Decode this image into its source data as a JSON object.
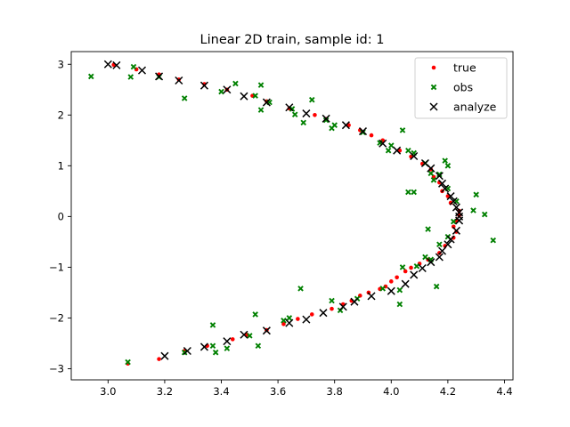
{
  "chart_data": {
    "type": "scatter",
    "title": "Linear 2D train, sample id: 1",
    "xlabel": "",
    "ylabel": "",
    "xlim": [
      2.87,
      4.43
    ],
    "ylim": [
      -3.22,
      3.25
    ],
    "xticks": [
      3.0,
      3.2,
      3.4,
      3.6,
      3.8,
      4.0,
      4.2,
      4.4
    ],
    "xtick_labels": [
      "3.0",
      "3.2",
      "3.4",
      "3.6",
      "3.8",
      "4.0",
      "4.2",
      "4.4"
    ],
    "yticks": [
      -3,
      -2,
      -1,
      0,
      1,
      2,
      3
    ],
    "ytick_labels": [
      "−3",
      "−2",
      "−1",
      "0",
      "1",
      "2",
      "3"
    ],
    "grid": false,
    "legend_position": "top-right",
    "series": [
      {
        "name": "true",
        "marker": "dot",
        "color": "#ff0000",
        "points": [
          [
            3.07,
            -2.9
          ],
          [
            3.18,
            -2.81
          ],
          [
            3.27,
            -2.65
          ],
          [
            3.35,
            -2.55
          ],
          [
            3.44,
            -2.42
          ],
          [
            3.49,
            -2.33
          ],
          [
            3.56,
            -2.24
          ],
          [
            3.62,
            -2.12
          ],
          [
            3.67,
            -2.02
          ],
          [
            3.72,
            -1.93
          ],
          [
            3.79,
            -1.82
          ],
          [
            3.83,
            -1.73
          ],
          [
            3.86,
            -1.66
          ],
          [
            3.89,
            -1.56
          ],
          [
            3.92,
            -1.5
          ],
          [
            3.96,
            -1.43
          ],
          [
            3.98,
            -1.38
          ],
          [
            4.0,
            -1.28
          ],
          [
            4.02,
            -1.2
          ],
          [
            4.05,
            -1.08
          ],
          [
            4.07,
            -1.01
          ],
          [
            4.1,
            -0.93
          ],
          [
            4.13,
            -0.85
          ],
          [
            4.17,
            -0.72
          ],
          [
            4.19,
            -0.58
          ],
          [
            4.22,
            -0.42
          ],
          [
            4.23,
            -0.3
          ],
          [
            4.22,
            -0.2
          ],
          [
            4.23,
            -0.08
          ],
          [
            4.24,
            0.02
          ],
          [
            4.24,
            0.11
          ],
          [
            4.21,
            0.27
          ],
          [
            4.2,
            0.4
          ],
          [
            4.18,
            0.5
          ],
          [
            4.17,
            0.67
          ],
          [
            4.15,
            0.78
          ],
          [
            4.14,
            0.93
          ],
          [
            4.11,
            1.04
          ],
          [
            4.07,
            1.18
          ],
          [
            4.03,
            1.3
          ],
          [
            3.97,
            1.5
          ],
          [
            3.93,
            1.6
          ],
          [
            3.89,
            1.7
          ],
          [
            3.85,
            1.8
          ],
          [
            3.77,
            1.92
          ],
          [
            3.73,
            2.0
          ],
          [
            3.64,
            2.13
          ],
          [
            3.56,
            2.27
          ],
          [
            3.51,
            2.38
          ],
          [
            3.42,
            2.5
          ],
          [
            3.34,
            2.61
          ],
          [
            3.25,
            2.7
          ],
          [
            3.18,
            2.8
          ],
          [
            3.1,
            2.9
          ],
          [
            3.02,
            2.99
          ]
        ]
      },
      {
        "name": "obs",
        "marker": "x-small",
        "color": "#008000",
        "points": [
          [
            2.94,
            2.76
          ],
          [
            3.08,
            2.75
          ],
          [
            3.09,
            2.95
          ],
          [
            3.18,
            2.75
          ],
          [
            3.27,
            2.33
          ],
          [
            3.4,
            2.46
          ],
          [
            3.45,
            2.62
          ],
          [
            3.52,
            2.38
          ],
          [
            3.54,
            2.59
          ],
          [
            3.54,
            2.1
          ],
          [
            3.57,
            2.25
          ],
          [
            3.65,
            2.12
          ],
          [
            3.66,
            2.01
          ],
          [
            3.69,
            1.85
          ],
          [
            3.72,
            2.3
          ],
          [
            3.77,
            1.9
          ],
          [
            3.79,
            1.74
          ],
          [
            3.8,
            1.8
          ],
          [
            3.9,
            1.66
          ],
          [
            3.96,
            1.45
          ],
          [
            3.99,
            1.3
          ],
          [
            4.0,
            1.4
          ],
          [
            4.04,
            1.7
          ],
          [
            4.06,
            1.3
          ],
          [
            4.08,
            1.25
          ],
          [
            4.12,
            1.05
          ],
          [
            4.14,
            0.85
          ],
          [
            4.15,
            0.72
          ],
          [
            4.17,
            0.83
          ],
          [
            4.19,
            1.1
          ],
          [
            4.2,
            0.55
          ],
          [
            4.2,
            1.0
          ],
          [
            4.06,
            0.48
          ],
          [
            4.08,
            0.48
          ],
          [
            4.23,
            0.3
          ],
          [
            4.3,
            0.43
          ],
          [
            4.29,
            0.12
          ],
          [
            4.33,
            0.04
          ],
          [
            4.36,
            -0.47
          ],
          [
            4.22,
            -0.1
          ],
          [
            4.13,
            -0.25
          ],
          [
            4.2,
            -0.4
          ],
          [
            4.17,
            -0.55
          ],
          [
            4.12,
            -0.8
          ],
          [
            4.14,
            -0.85
          ],
          [
            4.16,
            -1.38
          ],
          [
            4.09,
            -0.98
          ],
          [
            4.04,
            -1.0
          ],
          [
            4.03,
            -1.73
          ],
          [
            4.03,
            -1.45
          ],
          [
            3.97,
            -1.42
          ],
          [
            3.88,
            -1.62
          ],
          [
            3.82,
            -1.85
          ],
          [
            3.79,
            -1.66
          ],
          [
            3.68,
            -1.42
          ],
          [
            3.62,
            -2.05
          ],
          [
            3.64,
            -2.0
          ],
          [
            3.52,
            -1.93
          ],
          [
            3.5,
            -2.35
          ],
          [
            3.53,
            -2.55
          ],
          [
            3.37,
            -2.14
          ],
          [
            3.37,
            -2.55
          ],
          [
            3.38,
            -2.68
          ],
          [
            3.42,
            -2.6
          ],
          [
            3.27,
            -2.68
          ],
          [
            3.07,
            -2.87
          ]
        ]
      },
      {
        "name": "analyze",
        "marker": "x-large",
        "color": "#000000",
        "points": [
          [
            3.0,
            3.0
          ],
          [
            3.03,
            2.98
          ],
          [
            3.12,
            2.88
          ],
          [
            3.18,
            2.76
          ],
          [
            3.25,
            2.68
          ],
          [
            3.34,
            2.58
          ],
          [
            3.42,
            2.5
          ],
          [
            3.48,
            2.37
          ],
          [
            3.56,
            2.25
          ],
          [
            3.64,
            2.15
          ],
          [
            3.7,
            2.03
          ],
          [
            3.77,
            1.93
          ],
          [
            3.84,
            1.8
          ],
          [
            3.9,
            1.68
          ],
          [
            3.97,
            1.44
          ],
          [
            4.02,
            1.3
          ],
          [
            4.08,
            1.19
          ],
          [
            4.12,
            1.05
          ],
          [
            4.14,
            0.95
          ],
          [
            4.17,
            0.8
          ],
          [
            4.18,
            0.65
          ],
          [
            4.19,
            0.55
          ],
          [
            4.21,
            0.4
          ],
          [
            4.22,
            0.3
          ],
          [
            4.23,
            0.18
          ],
          [
            4.24,
            0.08
          ],
          [
            4.24,
            0.0
          ],
          [
            4.24,
            -0.08
          ],
          [
            4.23,
            -0.28
          ],
          [
            4.21,
            -0.45
          ],
          [
            4.2,
            -0.55
          ],
          [
            4.18,
            -0.68
          ],
          [
            4.17,
            -0.8
          ],
          [
            4.14,
            -0.9
          ],
          [
            4.11,
            -1.02
          ],
          [
            4.08,
            -1.15
          ],
          [
            4.05,
            -1.33
          ],
          [
            4.0,
            -1.47
          ],
          [
            3.93,
            -1.57
          ],
          [
            3.87,
            -1.68
          ],
          [
            3.83,
            -1.78
          ],
          [
            3.76,
            -1.9
          ],
          [
            3.7,
            -2.03
          ],
          [
            3.64,
            -2.1
          ],
          [
            3.56,
            -2.25
          ],
          [
            3.48,
            -2.33
          ],
          [
            3.42,
            -2.46
          ],
          [
            3.34,
            -2.57
          ],
          [
            3.28,
            -2.65
          ],
          [
            3.2,
            -2.75
          ]
        ]
      }
    ]
  }
}
